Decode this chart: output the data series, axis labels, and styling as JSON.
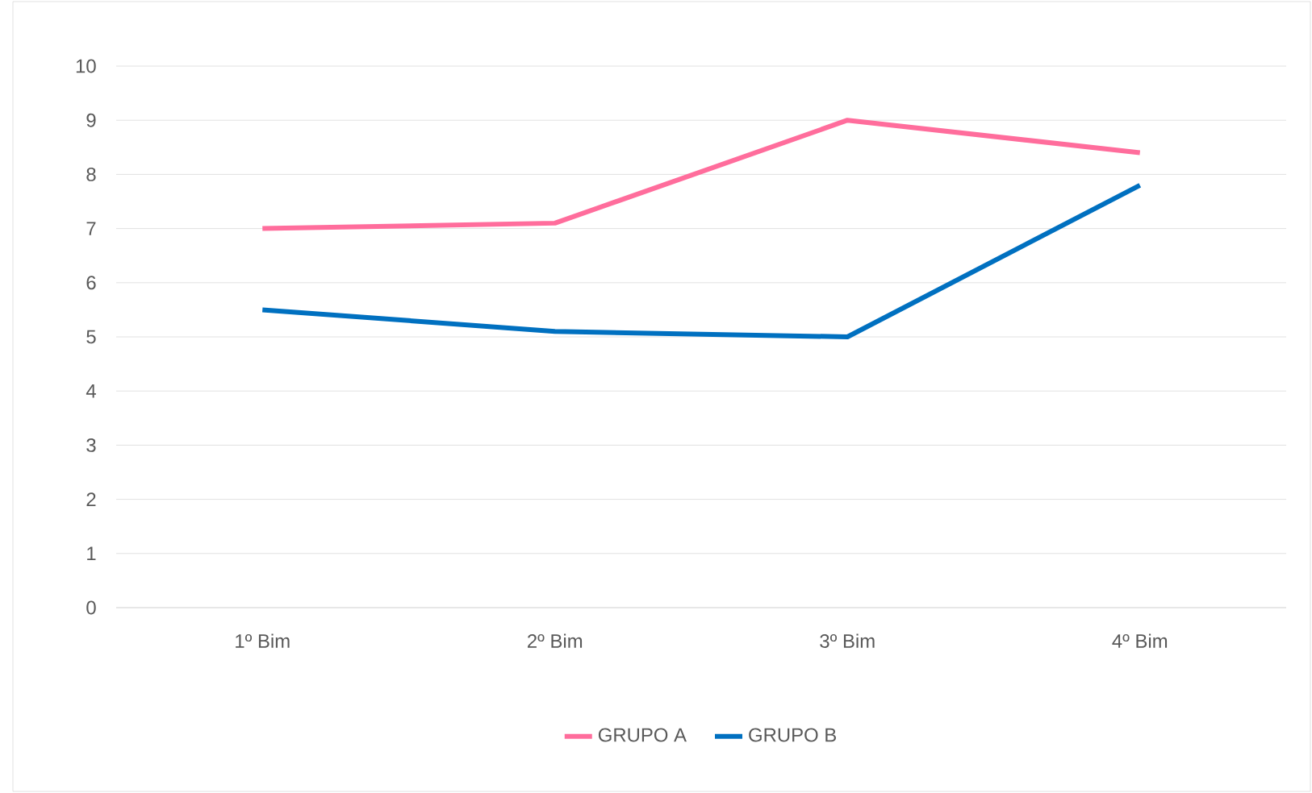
{
  "chart_data": {
    "type": "line",
    "categories": [
      "1º Bim",
      "2º Bim",
      "3º Bim",
      "4º Bim"
    ],
    "series": [
      {
        "name": "GRUPO A",
        "color": "#ff6d9c",
        "values": [
          7,
          7.1,
          9,
          8.4
        ]
      },
      {
        "name": "GRUPO B",
        "color": "#0070c0",
        "values": [
          5.5,
          5.1,
          5.0,
          7.8
        ]
      }
    ],
    "ylim": [
      0,
      10
    ],
    "yticks": [
      0,
      1,
      2,
      3,
      4,
      5,
      6,
      7,
      8,
      9,
      10
    ],
    "grid": "y",
    "legend": "bottom",
    "marker": "none",
    "line_style": "solid"
  }
}
